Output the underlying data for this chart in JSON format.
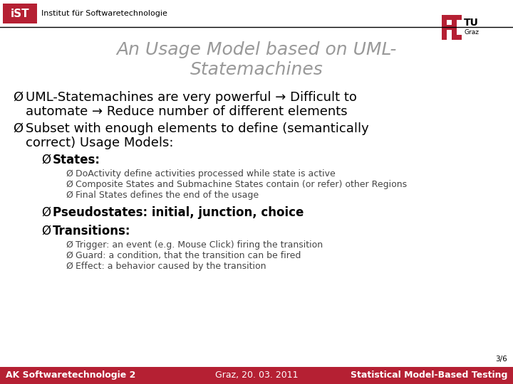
{
  "title_line1": "An Usage Model based on UML-",
  "title_line2": "Statemachines",
  "title_color": "#999999",
  "bg_color": "#ffffff",
  "header_text": "Institut für Softwaretechnologie",
  "footer_left": "AK Softwaretechnologie 2",
  "footer_center": "Graz, 20. 03. 2011",
  "footer_right": "Statistical Model-Based Testing",
  "footer_page": "3/6",
  "ist_red": "#b52033",
  "line_color": "#000000",
  "text_color": "#000000",
  "small_text_color": "#444444",
  "bullet_symbol": "Ø",
  "arrow_symbol": "→",
  "lv1_fontsize": 13,
  "lv2_fontsize": 12,
  "lv3_fontsize": 9,
  "header_fontsize": 8,
  "title_fontsize": 18,
  "footer_fontsize": 9,
  "sub_sub1a": "DoActivity define activities processed while state is active",
  "sub_sub1b": "Composite States and Submachine States contain (or refer) other Regions",
  "sub_sub1c": "Final States defines the end of the usage",
  "sub_sub3a": "Trigger: an event (e.g. Mouse Click) firing the transition",
  "sub_sub3b": "Guard: a condition, that the transition can be fired",
  "sub_sub3c": "Effect: a behavior caused by the transition"
}
